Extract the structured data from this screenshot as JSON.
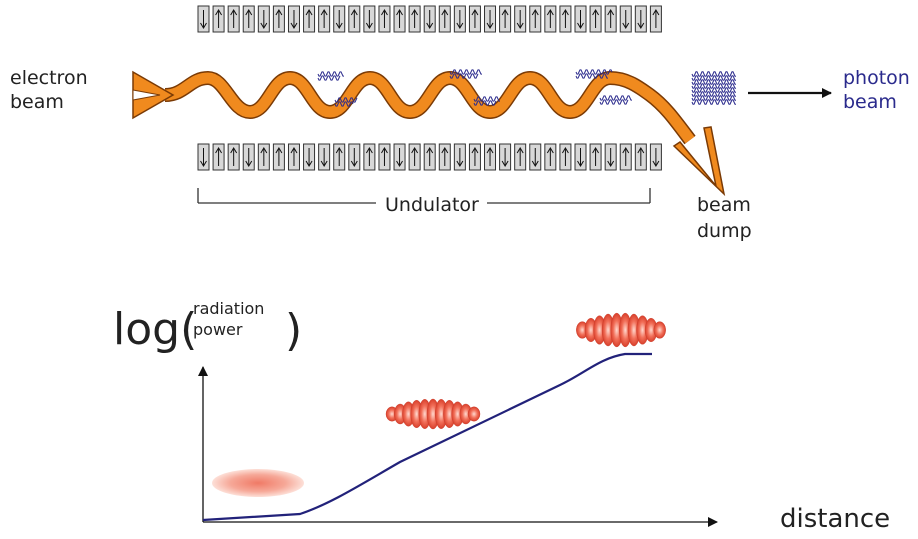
{
  "labels": {
    "electron_beam": [
      "electron",
      "beam"
    ],
    "photon_beam": [
      "photon",
      "beam"
    ],
    "undulator": "Undulator",
    "beam_dump": [
      "beam",
      "dump"
    ],
    "log_prefix": "log(",
    "radiation_power": [
      "radiation",
      "power"
    ],
    "log_suffix": ")",
    "distance": "distance"
  },
  "magnets": {
    "top_row": [
      "down",
      "up",
      "up",
      "up",
      "down",
      "up",
      "down",
      "up",
      "up",
      "down",
      "up",
      "down",
      "up",
      "up",
      "up",
      "down",
      "up",
      "down",
      "up",
      "down",
      "up",
      "down",
      "up",
      "up",
      "up",
      "down",
      "up",
      "up",
      "down",
      "down",
      "up"
    ],
    "bottom_row": [
      "down",
      "up",
      "up",
      "down",
      "up",
      "up",
      "up",
      "down",
      "down",
      "up",
      "down",
      "up",
      "up",
      "down",
      "up",
      "up",
      "up",
      "down",
      "up",
      "up",
      "down",
      "up",
      "down",
      "up",
      "up",
      "down",
      "up",
      "down",
      "up",
      "up",
      "down"
    ]
  },
  "colors": {
    "electron_beam": "#f08a1e",
    "photon_wave": "#2a2a8c",
    "curve": "#22227a",
    "bunch": "#e8604a"
  }
}
